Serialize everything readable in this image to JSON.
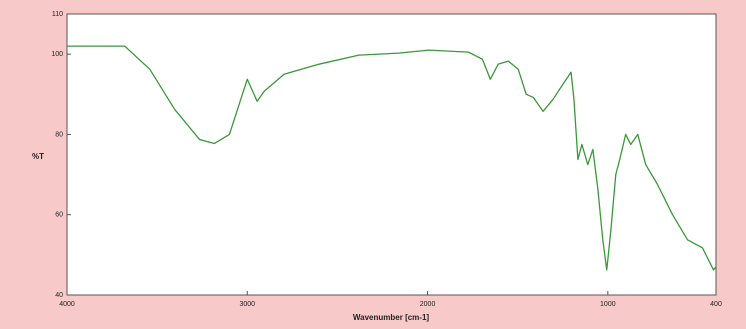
{
  "chart_data": {
    "type": "line",
    "x_label": "Wavenumber [cm-1]",
    "y_label": "%T",
    "x": [
      4000,
      3680,
      3541,
      3403,
      3265,
      3182,
      3099,
      3000,
      2945,
      2906,
      2796,
      2602,
      2381,
      2160,
      1994,
      1773,
      1696,
      1652,
      1608,
      1552,
      1497,
      1453,
      1414,
      1359,
      1304,
      1249,
      1204,
      1188,
      1166,
      1144,
      1111,
      1083,
      1055,
      1028,
      1006,
      983,
      956,
      934,
      901,
      873,
      834,
      790,
      724,
      641,
      558,
      475,
      414,
      400
    ],
    "values": [
      102,
      102,
      96.25,
      86.25,
      78.75,
      77.75,
      80,
      93.75,
      88.25,
      90.75,
      95,
      97.5,
      99.75,
      100.25,
      101,
      100.5,
      98.75,
      93.75,
      97.5,
      98.25,
      96.25,
      90,
      89.25,
      85.75,
      88.75,
      92.5,
      95.5,
      88.75,
      73.75,
      77.5,
      72.5,
      76.25,
      66.25,
      53.75,
      46.25,
      56.25,
      70,
      73.75,
      80,
      77.5,
      80,
      72.5,
      67.5,
      60,
      53.75,
      51.75,
      46.25,
      47
    ],
    "color": "#3a983a",
    "xlim": [
      4000,
      400
    ],
    "ylim": [
      40,
      110
    ],
    "xticks": [
      4000,
      3000,
      2000,
      1000,
      400
    ],
    "yticks": [
      40,
      60,
      80,
      100,
      110
    ],
    "grid": false
  }
}
